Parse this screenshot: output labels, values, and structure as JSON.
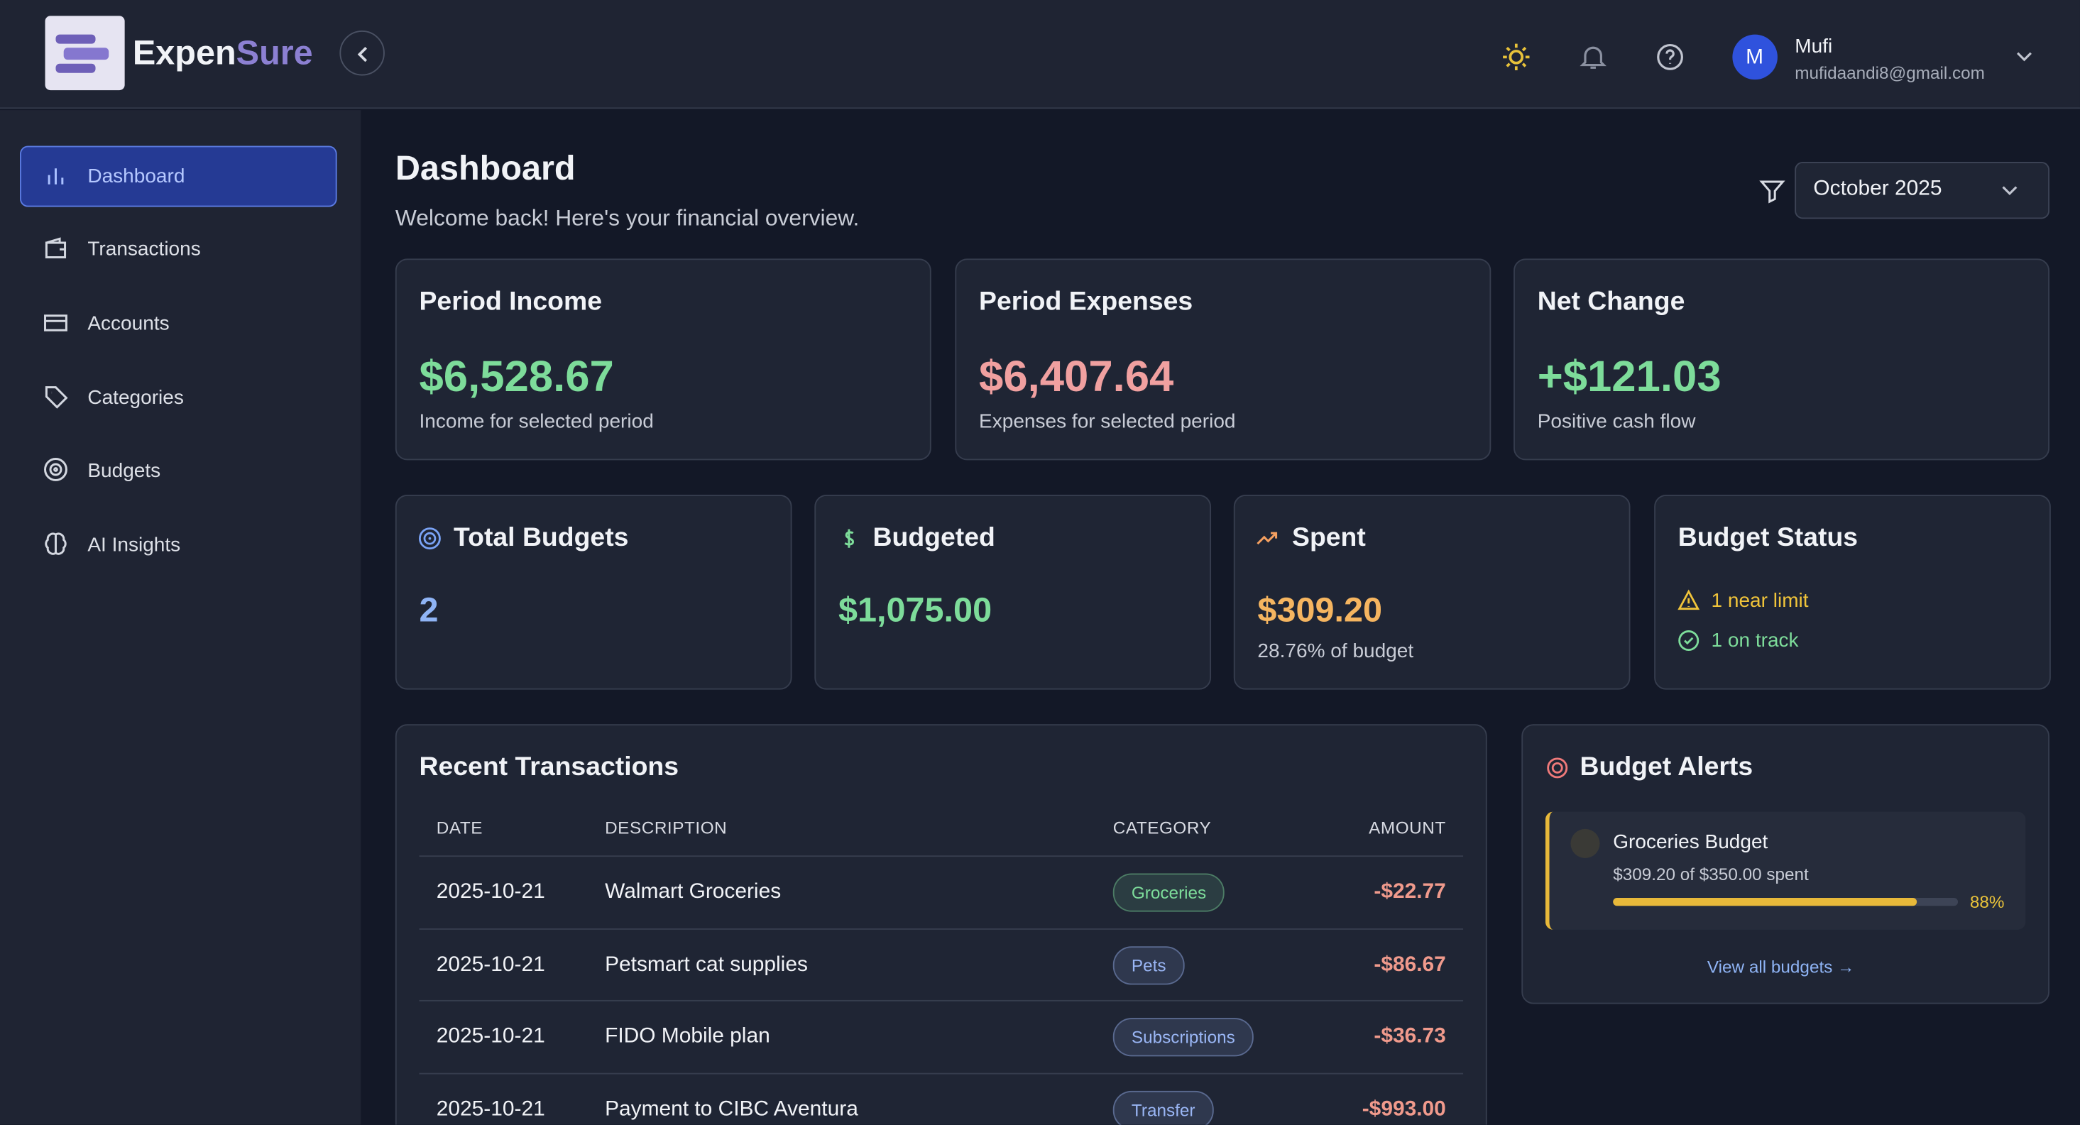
{
  "header": {
    "logo_prefix": "Expen",
    "logo_suffix": "Sure",
    "user_initial": "M",
    "user_name": "Mufi",
    "user_email": "mufidaandi8@gmail.com"
  },
  "sidebar": {
    "items": [
      "Dashboard",
      "Transactions",
      "Accounts",
      "Categories",
      "Budgets",
      "AI Insights"
    ],
    "active": 0
  },
  "page": {
    "title": "Dashboard",
    "subtitle": "Welcome back! Here's your financial overview.",
    "period": "October 2025"
  },
  "summary_cards": [
    {
      "title": "Period Income",
      "value": "$6,528.67",
      "note": "Income for selected period",
      "color": "#7ddc9a"
    },
    {
      "title": "Period Expenses",
      "value": "$6,407.64",
      "note": "Expenses for selected period",
      "color": "#f0a0a0"
    },
    {
      "title": "Net Change",
      "value": "+$121.03",
      "note": "Positive cash flow",
      "color": "#7ddc9a"
    }
  ],
  "budget_cards": [
    {
      "title": "Total Budgets",
      "value": "2",
      "color": "#8fb4f5"
    },
    {
      "title": "Budgeted",
      "value": "$1,075.00",
      "color": "#7ddc9a"
    },
    {
      "title": "Spent",
      "value": "$309.20",
      "note": "28.76% of budget",
      "color": "#f5b560"
    },
    {
      "title": "Budget Status",
      "items": [
        "1 near limit",
        "1 on track"
      ]
    }
  ],
  "recent_transactions": {
    "title": "Recent Transactions",
    "columns": [
      "DATE",
      "DESCRIPTION",
      "CATEGORY",
      "AMOUNT"
    ],
    "rows": [
      {
        "date": "2025-10-21",
        "description": "Walmart Groceries",
        "category": "Groceries",
        "category_color": "#7ddc9a",
        "amount": "-$22.77"
      },
      {
        "date": "2025-10-21",
        "description": "Petsmart cat supplies",
        "category": "Pets",
        "category_color": "#9ab6f5",
        "amount": "-$86.67"
      },
      {
        "date": "2025-10-21",
        "description": "FIDO Mobile plan",
        "category": "Subscriptions",
        "category_color": "#9ab6f5",
        "amount": "-$36.73"
      },
      {
        "date": "2025-10-21",
        "description": "Payment to CIBC Aventura",
        "category": "Transfer",
        "category_color": "#9ab6f5",
        "amount": "-$993.00"
      }
    ]
  },
  "budget_alerts": {
    "title": "Budget Alerts",
    "alerts": [
      {
        "name": "Groceries Budget",
        "detail": "$309.20 of $350.00 spent",
        "progress": 88,
        "progress_label": "88%"
      }
    ],
    "link": "View all budgets →"
  }
}
